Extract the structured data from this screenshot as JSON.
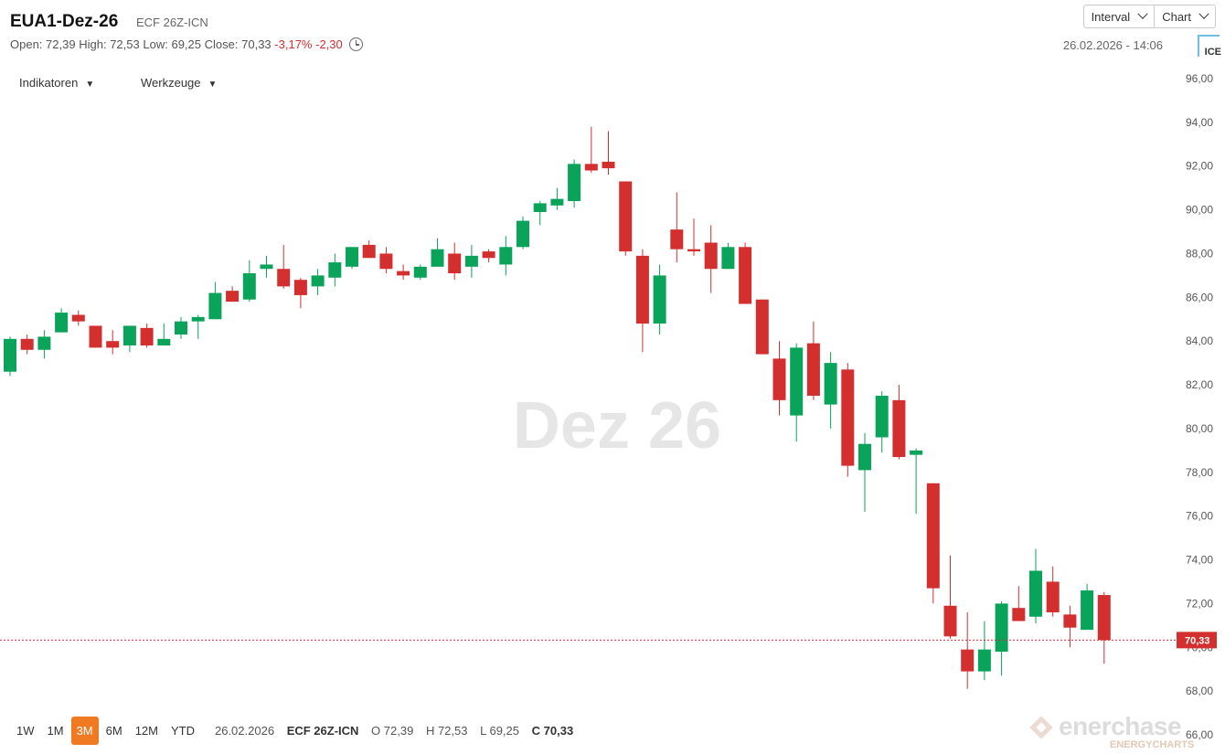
{
  "header": {
    "title": "EUA1-Dez-26",
    "subtitle": "ECF 26Z-ICN",
    "open_label": "Open:",
    "open": "72,39",
    "high_label": "High:",
    "high": "72,53",
    "low_label": "Low:",
    "low": "69,25",
    "close_label": "Close:",
    "close": "70,33",
    "change_pct": "-3,17%",
    "change_abs": "-2,30",
    "timestamp": "26.02.2026 - 14:06",
    "ice_logo_text": "ICE"
  },
  "toolbar": {
    "interval_label": "Interval",
    "chart_label": "Chart"
  },
  "menus": {
    "indicators_label": "Indikatoren",
    "tools_label": "Werkzeuge"
  },
  "periods": [
    "1W",
    "1M",
    "3M",
    "6M",
    "12M",
    "YTD"
  ],
  "active_period": "3M",
  "bottom_info": {
    "date": "26.02.2026",
    "symbol": "ECF 26Z-ICN",
    "o": "O 72,39",
    "h": "H 72,53",
    "l": "L 69,25",
    "c": "C 70,33"
  },
  "watermark_branding": {
    "word": "enerchase",
    "sub": "ENERGYCHARTS"
  },
  "colors": {
    "up": "#0aa35a",
    "down": "#d32f2f",
    "accent": "#f07a22",
    "last_price_marker": "#d32f2f"
  },
  "chart_data": {
    "type": "candlestick",
    "title": "",
    "watermark": "Dez 26",
    "ylim": [
      66,
      97
    ],
    "y_ticks": [
      "66,00",
      "68,00",
      "70,00",
      "72,00",
      "74,00",
      "76,00",
      "78,00",
      "80,00",
      "82,00",
      "84,00",
      "86,00",
      "88,00",
      "90,00",
      "92,00",
      "94,00",
      "96,00"
    ],
    "y_axis_position": "right",
    "last_price": 70.33,
    "last_price_label": "70,33",
    "ohlc": [
      {
        "o": 82.6,
        "h": 84.2,
        "l": 82.4,
        "c": 84.1
      },
      {
        "o": 84.1,
        "h": 84.3,
        "l": 83.4,
        "c": 83.6
      },
      {
        "o": 83.6,
        "h": 84.5,
        "l": 83.2,
        "c": 84.2
      },
      {
        "o": 84.4,
        "h": 85.5,
        "l": 84.4,
        "c": 85.3
      },
      {
        "o": 85.2,
        "h": 85.4,
        "l": 84.7,
        "c": 84.9
      },
      {
        "o": 84.7,
        "h": 84.7,
        "l": 83.7,
        "c": 83.7
      },
      {
        "o": 84.0,
        "h": 84.5,
        "l": 83.4,
        "c": 83.7
      },
      {
        "o": 83.8,
        "h": 84.7,
        "l": 83.5,
        "c": 84.7
      },
      {
        "o": 84.6,
        "h": 84.8,
        "l": 83.7,
        "c": 83.8
      },
      {
        "o": 83.8,
        "h": 84.8,
        "l": 83.8,
        "c": 84.1
      },
      {
        "o": 84.3,
        "h": 85.1,
        "l": 84.1,
        "c": 84.9
      },
      {
        "o": 84.9,
        "h": 85.2,
        "l": 84.1,
        "c": 85.1
      },
      {
        "o": 85.0,
        "h": 86.7,
        "l": 85.0,
        "c": 86.2
      },
      {
        "o": 86.3,
        "h": 86.5,
        "l": 85.8,
        "c": 85.8
      },
      {
        "o": 85.9,
        "h": 87.7,
        "l": 85.8,
        "c": 87.1
      },
      {
        "o": 87.3,
        "h": 87.9,
        "l": 86.9,
        "c": 87.5
      },
      {
        "o": 87.3,
        "h": 88.4,
        "l": 86.4,
        "c": 86.5
      },
      {
        "o": 86.8,
        "h": 86.9,
        "l": 85.5,
        "c": 86.1
      },
      {
        "o": 86.5,
        "h": 87.3,
        "l": 86.1,
        "c": 87.0
      },
      {
        "o": 86.9,
        "h": 88.0,
        "l": 86.5,
        "c": 87.6
      },
      {
        "o": 87.4,
        "h": 88.3,
        "l": 87.3,
        "c": 88.3
      },
      {
        "o": 88.4,
        "h": 88.6,
        "l": 87.8,
        "c": 87.8
      },
      {
        "o": 88.0,
        "h": 88.3,
        "l": 87.1,
        "c": 87.3
      },
      {
        "o": 87.2,
        "h": 87.5,
        "l": 86.8,
        "c": 87.0
      },
      {
        "o": 86.9,
        "h": 87.5,
        "l": 86.8,
        "c": 87.4
      },
      {
        "o": 87.4,
        "h": 88.7,
        "l": 87.4,
        "c": 88.2
      },
      {
        "o": 88.0,
        "h": 88.5,
        "l": 86.8,
        "c": 87.1
      },
      {
        "o": 87.4,
        "h": 88.4,
        "l": 86.9,
        "c": 87.9
      },
      {
        "o": 88.1,
        "h": 88.2,
        "l": 87.6,
        "c": 87.8
      },
      {
        "o": 87.5,
        "h": 88.8,
        "l": 87.0,
        "c": 88.3
      },
      {
        "o": 88.3,
        "h": 89.7,
        "l": 88.2,
        "c": 89.5
      },
      {
        "o": 89.9,
        "h": 90.4,
        "l": 89.3,
        "c": 90.3
      },
      {
        "o": 90.2,
        "h": 91.0,
        "l": 90.0,
        "c": 90.5
      },
      {
        "o": 90.4,
        "h": 92.3,
        "l": 90.1,
        "c": 92.1
      },
      {
        "o": 92.1,
        "h": 93.8,
        "l": 91.7,
        "c": 91.8
      },
      {
        "o": 92.2,
        "h": 93.6,
        "l": 91.6,
        "c": 91.9
      },
      {
        "o": 91.3,
        "h": 91.3,
        "l": 87.9,
        "c": 88.1
      },
      {
        "o": 87.9,
        "h": 88.2,
        "l": 83.5,
        "c": 84.8
      },
      {
        "o": 84.8,
        "h": 87.5,
        "l": 84.3,
        "c": 87.0
      },
      {
        "o": 89.1,
        "h": 90.8,
        "l": 87.6,
        "c": 88.2
      },
      {
        "o": 88.2,
        "h": 89.6,
        "l": 87.9,
        "c": 88.1
      },
      {
        "o": 88.5,
        "h": 89.3,
        "l": 86.2,
        "c": 87.3
      },
      {
        "o": 87.3,
        "h": 88.5,
        "l": 87.3,
        "c": 88.3
      },
      {
        "o": 88.3,
        "h": 88.5,
        "l": 85.7,
        "c": 85.7
      },
      {
        "o": 85.9,
        "h": 85.9,
        "l": 83.4,
        "c": 83.4
      },
      {
        "o": 83.2,
        "h": 84.0,
        "l": 80.6,
        "c": 81.3
      },
      {
        "o": 80.6,
        "h": 83.9,
        "l": 79.4,
        "c": 83.7
      },
      {
        "o": 83.9,
        "h": 84.9,
        "l": 81.3,
        "c": 81.5
      },
      {
        "o": 81.1,
        "h": 83.5,
        "l": 80.0,
        "c": 83.0
      },
      {
        "o": 82.7,
        "h": 83.0,
        "l": 77.8,
        "c": 78.3
      },
      {
        "o": 78.1,
        "h": 79.8,
        "l": 76.2,
        "c": 79.3
      },
      {
        "o": 79.6,
        "h": 81.7,
        "l": 78.9,
        "c": 81.5
      },
      {
        "o": 81.3,
        "h": 82.0,
        "l": 78.6,
        "c": 78.7
      },
      {
        "o": 78.8,
        "h": 79.1,
        "l": 76.1,
        "c": 79.0
      },
      {
        "o": 77.5,
        "h": 77.5,
        "l": 72.0,
        "c": 72.7
      },
      {
        "o": 71.9,
        "h": 74.2,
        "l": 70.4,
        "c": 70.5
      },
      {
        "o": 69.9,
        "h": 71.6,
        "l": 68.1,
        "c": 68.9
      },
      {
        "o": 68.9,
        "h": 71.2,
        "l": 68.5,
        "c": 69.9
      },
      {
        "o": 69.8,
        "h": 72.1,
        "l": 68.7,
        "c": 72.0
      },
      {
        "o": 71.8,
        "h": 72.8,
        "l": 71.2,
        "c": 71.2
      },
      {
        "o": 71.4,
        "h": 74.5,
        "l": 71.1,
        "c": 73.5
      },
      {
        "o": 73.0,
        "h": 73.7,
        "l": 71.4,
        "c": 71.6
      },
      {
        "o": 71.5,
        "h": 71.9,
        "l": 70.0,
        "c": 70.9
      },
      {
        "o": 70.8,
        "h": 72.9,
        "l": 70.8,
        "c": 72.6
      },
      {
        "o": 72.39,
        "h": 72.53,
        "l": 69.25,
        "c": 70.33
      }
    ]
  }
}
